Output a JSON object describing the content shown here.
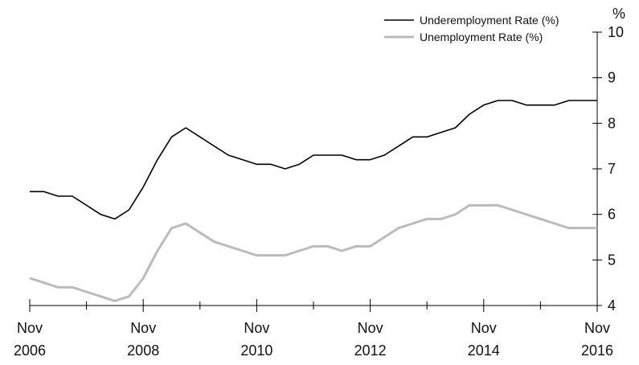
{
  "chart_data": {
    "type": "line",
    "unit_label": "%",
    "x": [
      "2006-11",
      "2007-02",
      "2007-05",
      "2007-08",
      "2007-11",
      "2008-02",
      "2008-05",
      "2008-08",
      "2008-11",
      "2009-02",
      "2009-05",
      "2009-08",
      "2009-11",
      "2010-02",
      "2010-05",
      "2010-08",
      "2010-11",
      "2011-02",
      "2011-05",
      "2011-08",
      "2011-11",
      "2012-02",
      "2012-05",
      "2012-08",
      "2012-11",
      "2013-02",
      "2013-05",
      "2013-08",
      "2013-11",
      "2014-02",
      "2014-05",
      "2014-08",
      "2014-11",
      "2015-02",
      "2015-05",
      "2015-08",
      "2015-11",
      "2016-02",
      "2016-05",
      "2016-08",
      "2016-11"
    ],
    "x_tick_labels": [
      {
        "x": "2006-11",
        "line1": "Nov",
        "line2": "2006"
      },
      {
        "x": "2008-11",
        "line1": "Nov",
        "line2": "2008"
      },
      {
        "x": "2010-11",
        "line1": "Nov",
        "line2": "2010"
      },
      {
        "x": "2012-11",
        "line1": "Nov",
        "line2": "2012"
      },
      {
        "x": "2014-11",
        "line1": "Nov",
        "line2": "2014"
      },
      {
        "x": "2016-11",
        "line1": "Nov",
        "line2": "2016"
      }
    ],
    "ylim": [
      4,
      10
    ],
    "y_ticks": [
      4,
      5,
      6,
      7,
      8,
      9,
      10
    ],
    "y_axis_side": "right",
    "grid": false,
    "legend_position": "top-right",
    "series": [
      {
        "name": "Underemployment Rate (%)",
        "color": "#000000",
        "values": [
          6.5,
          6.5,
          6.4,
          6.4,
          6.2,
          6.0,
          5.9,
          6.1,
          6.6,
          7.2,
          7.7,
          7.9,
          7.7,
          7.5,
          7.3,
          7.2,
          7.1,
          7.1,
          7.0,
          7.1,
          7.3,
          7.3,
          7.3,
          7.2,
          7.2,
          7.3,
          7.5,
          7.7,
          7.7,
          7.8,
          7.9,
          8.2,
          8.4,
          8.5,
          8.5,
          8.4,
          8.4,
          8.4,
          8.5,
          8.5,
          8.5
        ]
      },
      {
        "name": "Unemployment Rate (%)",
        "color": "#bbbbbb",
        "values": [
          4.6,
          4.5,
          4.4,
          4.4,
          4.3,
          4.2,
          4.1,
          4.2,
          4.6,
          5.2,
          5.7,
          5.8,
          5.6,
          5.4,
          5.3,
          5.2,
          5.1,
          5.1,
          5.1,
          5.2,
          5.3,
          5.3,
          5.2,
          5.3,
          5.3,
          5.5,
          5.7,
          5.8,
          5.9,
          5.9,
          6.0,
          6.2,
          6.2,
          6.2,
          6.1,
          6.0,
          5.9,
          5.8,
          5.7,
          5.7,
          5.7
        ]
      }
    ]
  }
}
